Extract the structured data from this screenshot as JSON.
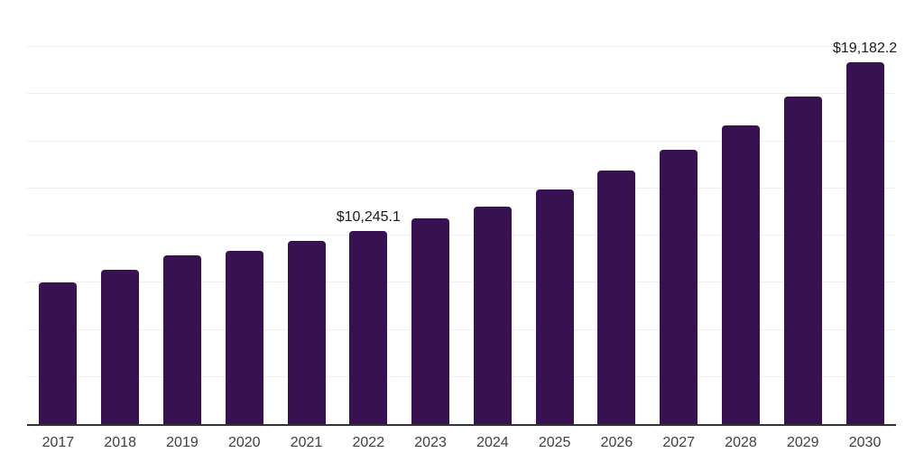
{
  "chart_data": {
    "type": "bar",
    "title": "",
    "xlabel": "",
    "ylabel": "",
    "categories": [
      "2017",
      "2018",
      "2019",
      "2020",
      "2021",
      "2022",
      "2023",
      "2024",
      "2025",
      "2026",
      "2027",
      "2028",
      "2029",
      "2030"
    ],
    "values": [
      7510,
      8180,
      8950,
      9190,
      9710,
      10245.1,
      10910,
      11530,
      12440,
      13440,
      14540,
      15840,
      17370,
      19182.2
    ],
    "data_labels": [
      {
        "category": "2022",
        "text": "$10,245.1"
      },
      {
        "category": "2030",
        "text": "$19,182.2"
      }
    ],
    "ylim": [
      0,
      22500
    ],
    "grid_interval": 2500,
    "grid": true,
    "legend": false,
    "y_axis_tick_labels": false,
    "colors": {
      "bar": "#371150",
      "gridline": "#f0f0f0",
      "axis": "#333333",
      "tick_label": "#404040",
      "data_label": "#1a1a1a",
      "background": "#ffffff"
    }
  }
}
